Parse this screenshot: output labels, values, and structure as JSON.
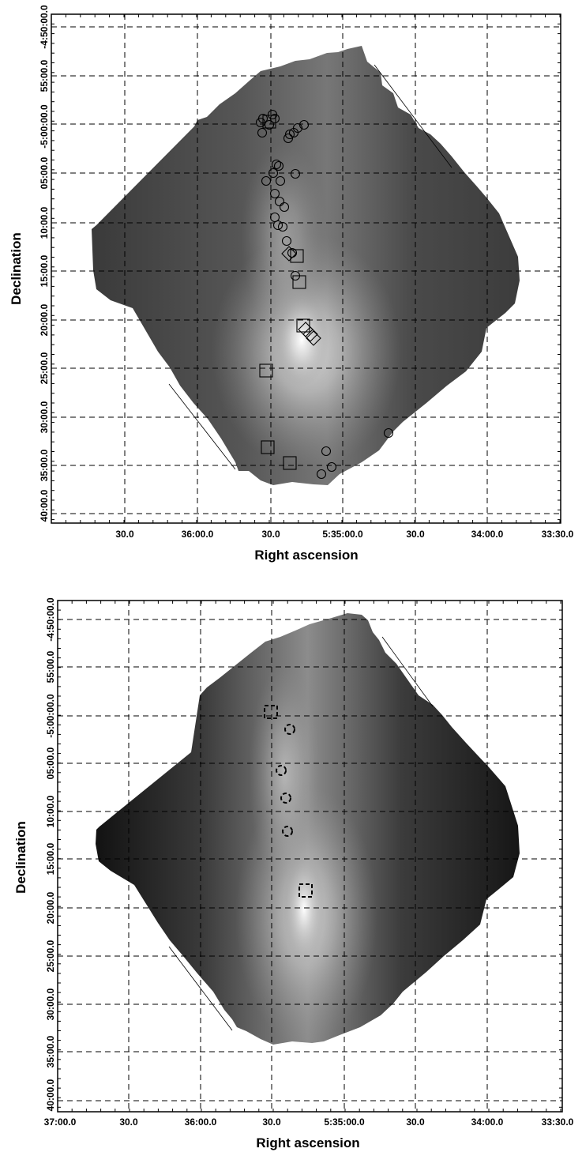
{
  "figure": {
    "panels": [
      {
        "id": "top",
        "xlabel": "Right ascension",
        "ylabel": "Declination",
        "x_ticks": [
          "",
          "30.0",
          "36:00.0",
          "30.0",
          "5:35:00.0",
          "30.0",
          "34:00.0",
          "33:30.0"
        ],
        "y_ticks": [
          "-4:50:00.0",
          "55:00.0",
          "-5:00:00.0",
          "05:00.0",
          "10:00.0",
          "15:00.0",
          "20:00.0",
          "25:00.0",
          "30:00.0",
          "35:00.0",
          "40:00.0"
        ],
        "markers": {
          "circles": [
            [
              333,
              150
            ],
            [
              330,
              155
            ],
            [
              345,
              145
            ],
            [
              348,
              150
            ],
            [
              341,
              158
            ],
            [
              332,
              168
            ],
            [
              372,
              168
            ],
            [
              377,
              162
            ],
            [
              367,
              170
            ],
            [
              385,
              158
            ],
            [
              365,
              175
            ],
            [
              350,
              208
            ],
            [
              353,
              210
            ],
            [
              346,
              219
            ],
            [
              337,
              229
            ],
            [
              355,
              229
            ],
            [
              348,
              245
            ],
            [
              354,
              255
            ],
            [
              360,
              262
            ],
            [
              348,
              275
            ],
            [
              352,
              285
            ],
            [
              358,
              287
            ],
            [
              363,
              305
            ],
            [
              370,
              320
            ],
            [
              374,
              220
            ],
            [
              374,
              349
            ],
            [
              492,
              548
            ],
            [
              413,
              571
            ],
            [
              420,
              591
            ],
            [
              407,
              600
            ]
          ],
          "squares": [
            [
              341,
              154
            ],
            [
              376,
              324
            ],
            [
              379,
              357
            ],
            [
              384,
              412
            ],
            [
              337,
              469
            ],
            [
              339,
              566
            ],
            [
              367,
              586
            ]
          ],
          "diamonds": [
            [
              366,
              321
            ],
            [
              387,
              417
            ],
            [
              393,
              423
            ],
            [
              397,
              428
            ]
          ]
        }
      },
      {
        "id": "bottom",
        "xlabel": "Right ascension",
        "ylabel": "Declination",
        "x_ticks": [
          "37:00.0",
          "30.0",
          "36:00.0",
          "30.0",
          "5:35:00.0",
          "30.0",
          "34:00.0",
          "33:30.0"
        ],
        "y_ticks": [
          "-4:50:00.0",
          "55:00.0",
          "-5:00:00.0",
          "05:00.0",
          "10:00.0",
          "15:00.0",
          "20:00.0",
          "25:00.0",
          "30:00.0",
          "35:00.0",
          "40:00.0"
        ],
        "markers": {
          "dashed_circles": [
            [
              367,
              923
            ],
            [
              356,
              975
            ],
            [
              362,
              1010
            ],
            [
              364,
              1052
            ]
          ],
          "dashed_squares": [
            [
              343,
              901
            ],
            [
              387,
              1127
            ]
          ]
        }
      }
    ]
  }
}
